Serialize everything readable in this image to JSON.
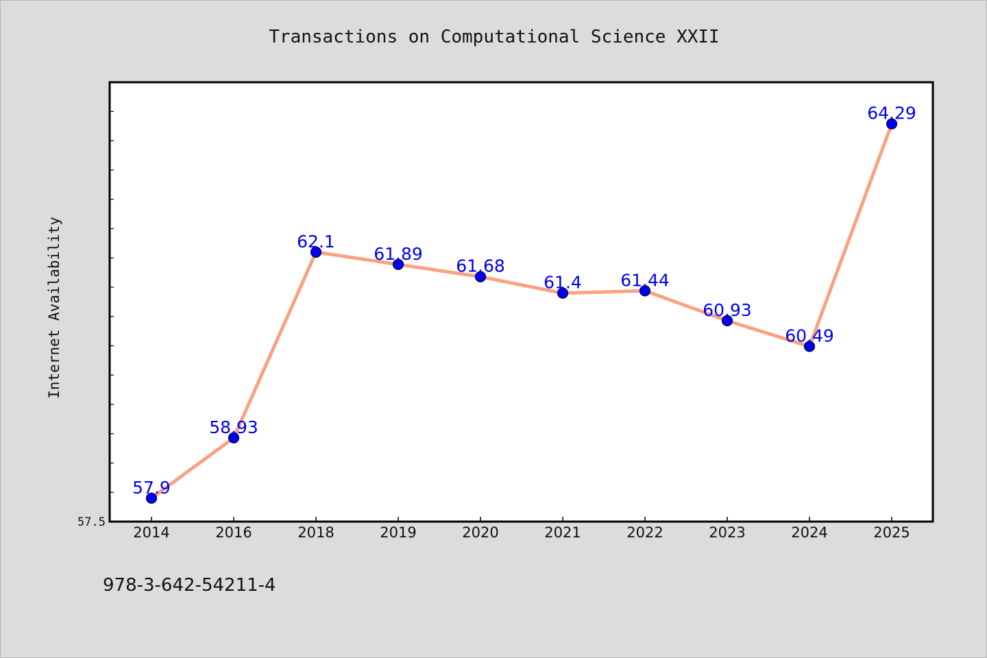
{
  "chart_data": {
    "type": "line",
    "title": "Transactions on Computational Science XXII",
    "xlabel": "",
    "ylabel": "Internet Availability",
    "categories": [
      "2014",
      "2016",
      "2018",
      "2019",
      "2020",
      "2021",
      "2022",
      "2023",
      "2024",
      "2025"
    ],
    "series": [
      {
        "values": [
          57.9,
          58.93,
          62.1,
          61.89,
          61.68,
          61.4,
          61.44,
          60.93,
          60.49,
          64.29
        ],
        "labels": [
          "57.9",
          "58.93",
          "62.1",
          "61.89",
          "61.68",
          "61.4",
          "61.44",
          "60.93",
          "60.49",
          "64.29"
        ]
      }
    ],
    "ylim": [
      57.5,
      65.0
    ],
    "yticks": [
      "57.5"
    ],
    "grid": false,
    "line_color": "#f9a282",
    "marker_color": "#0000ee",
    "label_color": "#0000ee",
    "background_color": "#dcdcdc",
    "plot_background_color": "#ffffff"
  },
  "footer": {
    "isbn": "978-3-642-54211-4"
  }
}
